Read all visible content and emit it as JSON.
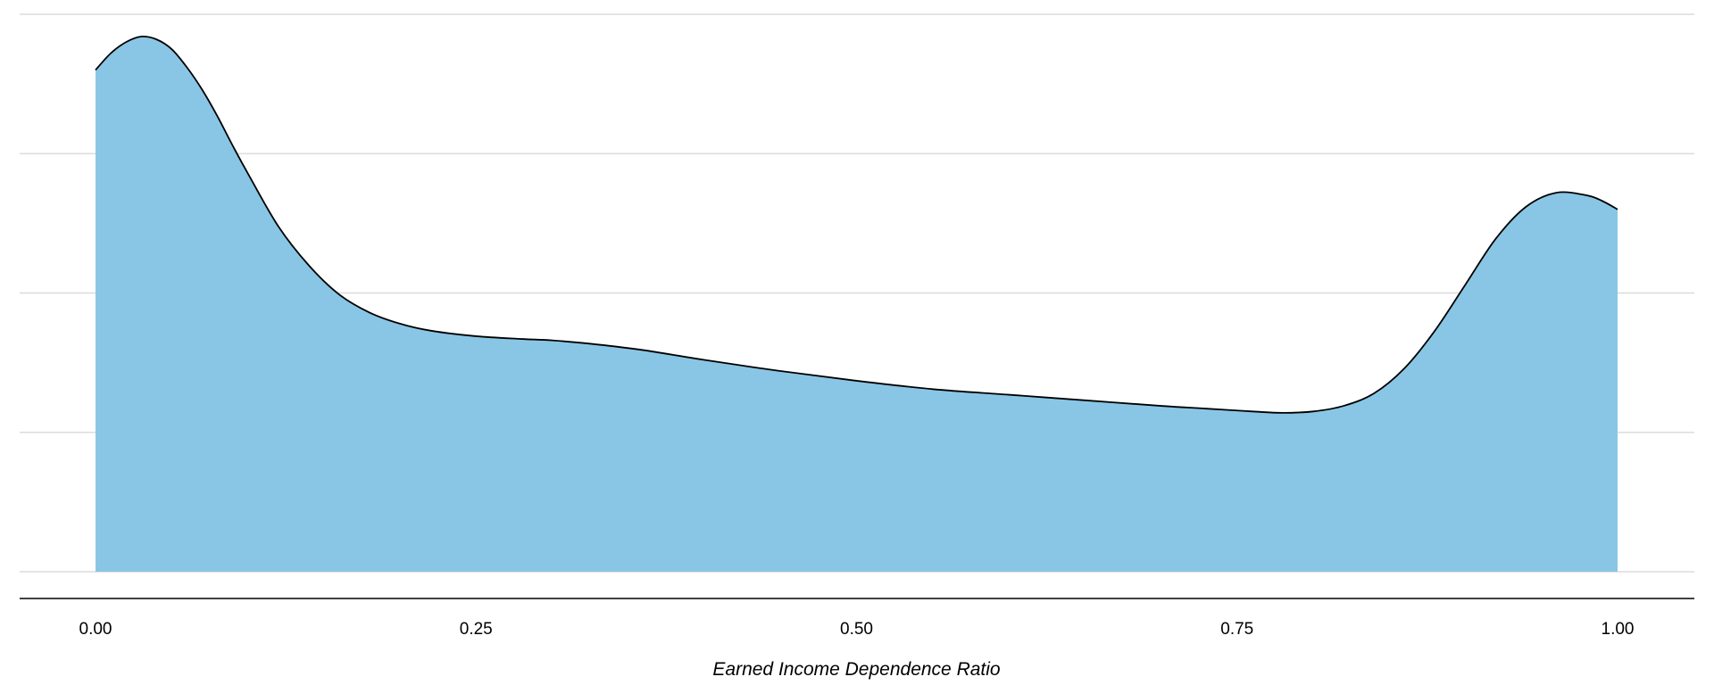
{
  "chart_data": {
    "type": "area",
    "title": "",
    "xlabel": "Earned Income Dependence Ratio",
    "ylabel": "",
    "xlim": [
      -0.05,
      1.05
    ],
    "ylim": [
      0,
      4
    ],
    "x_ticks": [
      0.0,
      0.25,
      0.5,
      0.75,
      1.0
    ],
    "x_tick_labels": [
      "0.00",
      "0.25",
      "0.50",
      "0.75",
      "1.00"
    ],
    "y_gridlines": [
      0,
      1,
      2,
      3,
      4
    ],
    "y_tick_labels_visible": false,
    "grid": "horizontal-major",
    "legend": "none",
    "series": [
      {
        "fill_color": "#89C6E5",
        "line_color": "#000000",
        "x": [
          0.0,
          0.01,
          0.02,
          0.03,
          0.04,
          0.05,
          0.06,
          0.07,
          0.08,
          0.09,
          0.1,
          0.12,
          0.14,
          0.16,
          0.18,
          0.2,
          0.22,
          0.25,
          0.28,
          0.3,
          0.33,
          0.36,
          0.4,
          0.45,
          0.5,
          0.55,
          0.6,
          0.65,
          0.7,
          0.73,
          0.76,
          0.78,
          0.8,
          0.82,
          0.84,
          0.86,
          0.88,
          0.9,
          0.92,
          0.94,
          0.96,
          0.98,
          0.99,
          1.0
        ],
        "y": [
          3.6,
          3.72,
          3.8,
          3.84,
          3.82,
          3.75,
          3.62,
          3.46,
          3.27,
          3.06,
          2.86,
          2.48,
          2.2,
          1.99,
          1.86,
          1.78,
          1.73,
          1.69,
          1.67,
          1.66,
          1.63,
          1.59,
          1.52,
          1.44,
          1.37,
          1.31,
          1.27,
          1.23,
          1.19,
          1.17,
          1.15,
          1.14,
          1.15,
          1.19,
          1.28,
          1.46,
          1.73,
          2.06,
          2.39,
          2.62,
          2.72,
          2.7,
          2.66,
          2.6
        ]
      }
    ]
  }
}
